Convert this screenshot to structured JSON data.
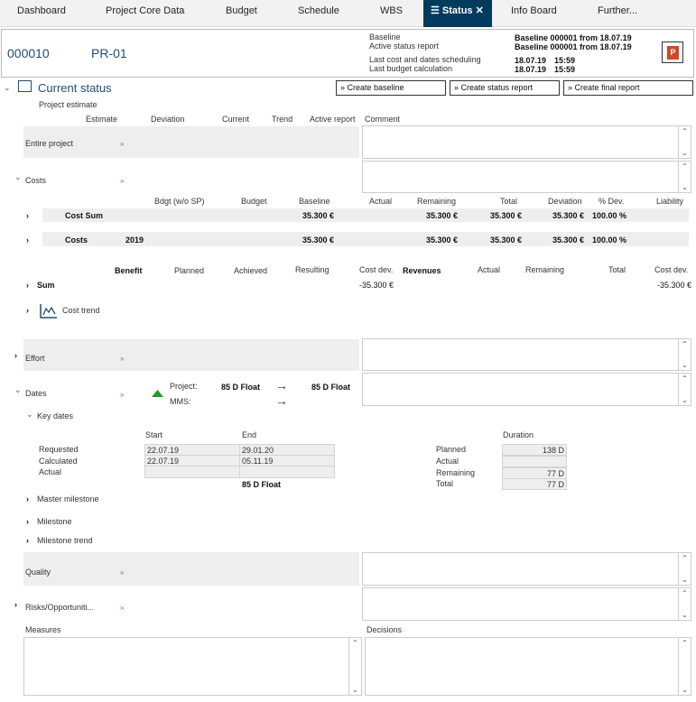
{
  "tabs": [
    "Dashboard",
    "Project Core Data",
    "Budget",
    "Schedule",
    "WBS",
    "Status",
    "Info Board",
    "Further..."
  ],
  "header": {
    "project_id": "000010",
    "project_code": "PR-01",
    "info": [
      {
        "label": "Baseline",
        "value": "Baseline 000001 from 18.07.19"
      },
      {
        "label": "Active status report",
        "value": "Baseline 000001 from 18.07.19"
      },
      {
        "label": "Last cost and dates scheduling",
        "date": "18.07.19",
        "time": "15:59"
      },
      {
        "label": "Last budget calculation",
        "date": "18.07.19",
        "time": "15:59"
      }
    ]
  },
  "title": "Current status",
  "buttons": [
    "Create baseline",
    "Create status report",
    "Create final report"
  ],
  "estimate": {
    "label": "Project estimate",
    "columns": [
      "Estimate",
      "Deviation",
      "Current",
      "Trend",
      "Active report",
      "Comment"
    ]
  },
  "sections": {
    "entire": "Entire project",
    "costs": "Costs",
    "effort": "Effort",
    "dates": "Dates",
    "quality": "Quality",
    "risks": "Risks/Opportuniti...",
    "measures": "Measures",
    "decisions": "Decisions"
  },
  "cost_table": {
    "columns": [
      "Bdgt (w/o SP)",
      "Budget",
      "Baseline",
      "Actual",
      "Remaining",
      "Total",
      "Deviation",
      "% Dev.",
      "Liability"
    ],
    "rows": [
      {
        "name": "Cost Sum",
        "year": "",
        "baseline": "35.300 €",
        "remaining": "35.300 €",
        "total": "35.300 €",
        "deviation": "35.300 €",
        "pct": "100.00 %"
      },
      {
        "name": "Costs",
        "year": "2019",
        "baseline": "35.300 €",
        "remaining": "35.300 €",
        "total": "35.300 €",
        "deviation": "35.300 €",
        "pct": "100.00 %"
      }
    ]
  },
  "benefit_table": {
    "columns": [
      "Benefit",
      "Planned",
      "Achieved",
      "Resulting",
      "Cost dev.",
      "Revenues",
      "Actual",
      "Remaining",
      "Total",
      "Cost dev."
    ],
    "sum_label": "Sum",
    "cost_dev_1": "-35.300 €",
    "cost_dev_2": "-35.300 €"
  },
  "cost_trend": "Cost trend",
  "dates": {
    "project_label": "Project:",
    "mms_label": "MMS:",
    "project_from": "85 D Float",
    "project_to": "85 D Float",
    "trend_color": "#1a9c2a",
    "key_dates": "Key dates",
    "start": "Start",
    "end": "End",
    "duration": "Duration",
    "rows": [
      {
        "label": "Requested",
        "start": "22.07.19",
        "end": "29.01.20"
      },
      {
        "label": "Calculated",
        "start": "22.07.19",
        "end": "05.11.19"
      },
      {
        "label": "Actual",
        "start": "",
        "end": ""
      }
    ],
    "float": "85 D Float",
    "durations": [
      {
        "label": "Planned",
        "value": "138 D"
      },
      {
        "label": "Actual",
        "value": ""
      },
      {
        "label": "Remaining",
        "value": "77 D"
      },
      {
        "label": "Total",
        "value": "77 D"
      }
    ],
    "sub": [
      "Master milestone",
      "Milestone",
      "Milestone trend"
    ]
  },
  "colors": {
    "active_tab": "#003a5d",
    "accent": "#1f4e79"
  }
}
